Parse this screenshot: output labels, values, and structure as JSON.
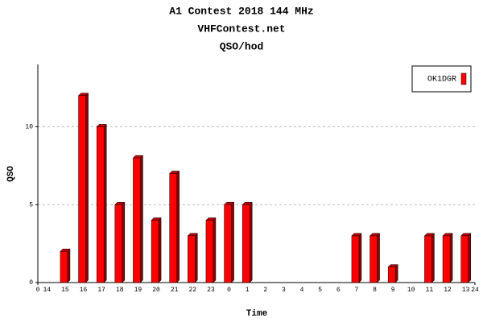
{
  "chart_data": {
    "type": "bar",
    "title": "A1 Contest 2018 144 MHz",
    "subtitle": "VHFContest.net",
    "subtitle2": "QSO/hod",
    "x_label": "Time",
    "y_label": "QSO",
    "categories": [
      "14",
      "15",
      "16",
      "17",
      "18",
      "19",
      "20",
      "21",
      "22",
      "23",
      "0",
      "1",
      "2",
      "3",
      "4",
      "5",
      "6",
      "7",
      "8",
      "9",
      "10",
      "11",
      "12",
      "13"
    ],
    "xlim": [
      0,
      24
    ],
    "series": [
      {
        "name": "OK1DGR",
        "color": "#ff0000",
        "values": [
          0,
          2,
          12,
          10,
          5,
          8,
          4,
          7,
          3,
          4,
          5,
          5,
          0,
          0,
          0,
          0,
          0,
          3,
          3,
          1,
          0,
          3,
          3,
          3
        ]
      }
    ],
    "ylim": [
      0,
      14
    ],
    "yticks": [
      0,
      5,
      10
    ],
    "grid": true,
    "legend": "top-right"
  }
}
